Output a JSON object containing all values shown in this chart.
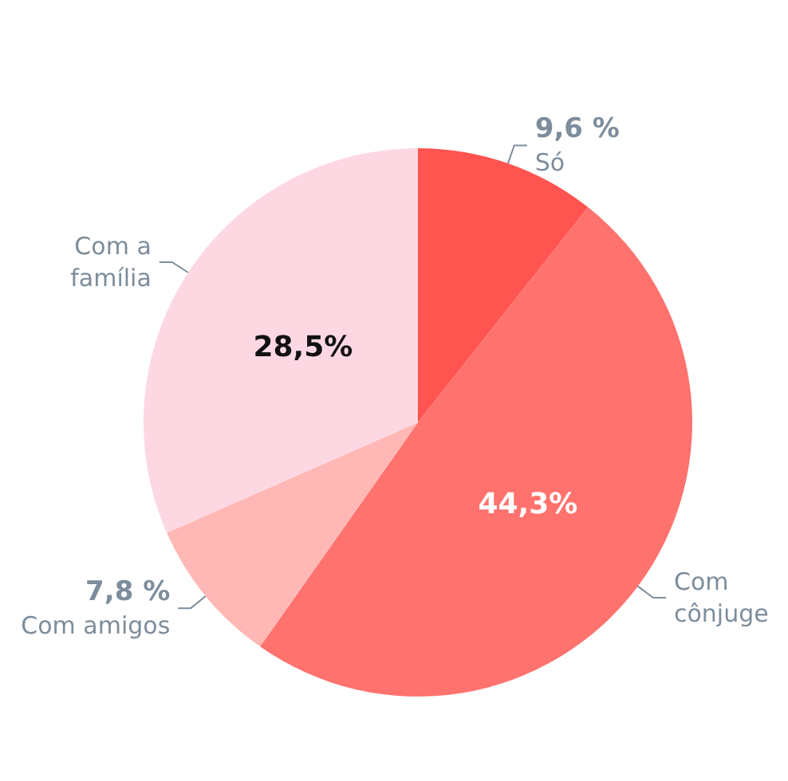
{
  "chart_data": {
    "type": "pie",
    "categories": [
      "Só",
      "Com cônjuge",
      "Com amigos",
      "Com a família"
    ],
    "values": [
      9.6,
      44.3,
      7.8,
      28.5
    ],
    "value_labels": [
      "9,6 %",
      "44,3%",
      "7,8 %",
      "28,5%"
    ],
    "colors": [
      "#ff5450",
      "#ff726e",
      "#ffb8b5",
      "#fdd8e3"
    ],
    "legend": false
  }
}
